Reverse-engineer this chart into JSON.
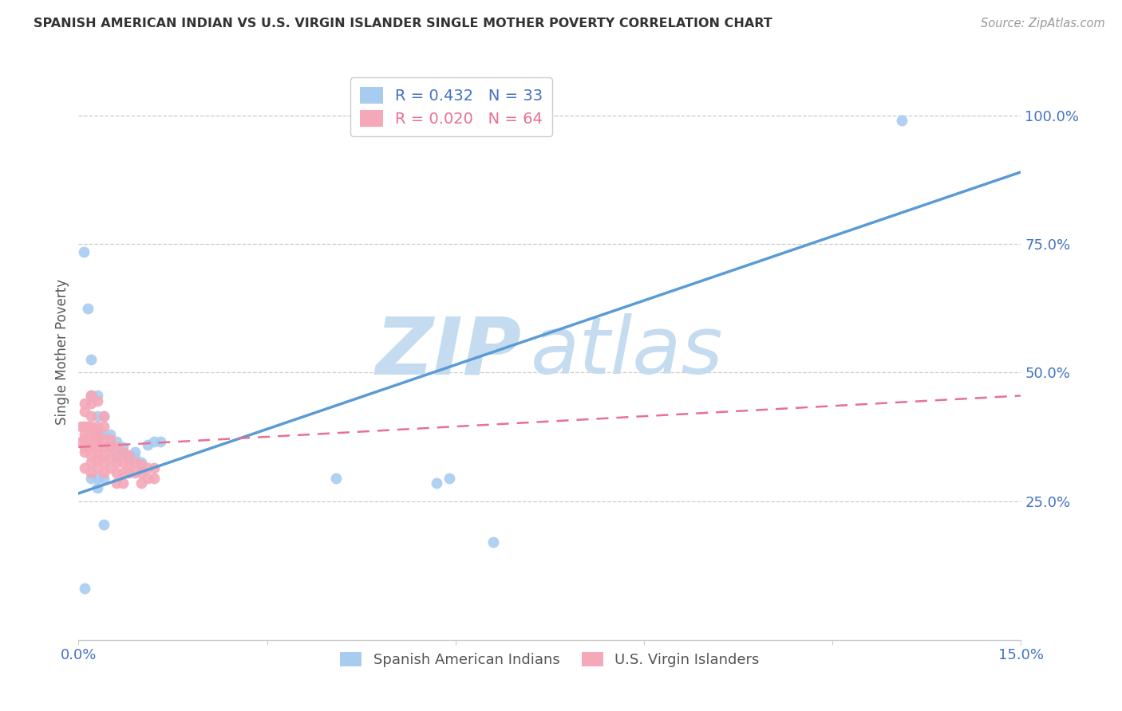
{
  "title": "SPANISH AMERICAN INDIAN VS U.S. VIRGIN ISLANDER SINGLE MOTHER POVERTY CORRELATION CHART",
  "source": "Source: ZipAtlas.com",
  "xlabel": "",
  "ylabel": "Single Mother Poverty",
  "xlim": [
    0.0,
    0.15
  ],
  "ylim": [
    -0.02,
    1.1
  ],
  "xticks": [
    0.0,
    0.03,
    0.06,
    0.09,
    0.12,
    0.15
  ],
  "xtick_labels": [
    "0.0%",
    "",
    "",
    "",
    "",
    "15.0%"
  ],
  "yticks_right": [
    0.25,
    0.5,
    0.75,
    1.0
  ],
  "ytick_right_labels": [
    "25.0%",
    "50.0%",
    "75.0%",
    "100.0%"
  ],
  "blue_color": "#A8CCF0",
  "pink_color": "#F4A8B8",
  "blue_line_color": "#5B9BD5",
  "pink_line_color": "#E87090",
  "watermark_zip": "ZIP",
  "watermark_atlas": "atlas",
  "legend_R_blue": "R = 0.432",
  "legend_N_blue": "N = 33",
  "legend_R_pink": "R = 0.020",
  "legend_N_pink": "N = 64",
  "blue_scatter_x": [
    0.0008,
    0.0015,
    0.002,
    0.002,
    0.003,
    0.003,
    0.003,
    0.004,
    0.004,
    0.005,
    0.005,
    0.006,
    0.006,
    0.007,
    0.007,
    0.008,
    0.009,
    0.009,
    0.01,
    0.011,
    0.012,
    0.013,
    0.002,
    0.003,
    0.004,
    0.059,
    0.057,
    0.003,
    0.041,
    0.004,
    0.066,
    0.131,
    0.001
  ],
  "blue_scatter_y": [
    0.735,
    0.625,
    0.525,
    0.455,
    0.455,
    0.415,
    0.38,
    0.415,
    0.38,
    0.38,
    0.355,
    0.365,
    0.335,
    0.355,
    0.345,
    0.335,
    0.345,
    0.335,
    0.325,
    0.36,
    0.365,
    0.365,
    0.295,
    0.295,
    0.295,
    0.295,
    0.285,
    0.275,
    0.295,
    0.205,
    0.17,
    0.99,
    0.08
  ],
  "pink_scatter_x": [
    0.0005,
    0.0005,
    0.001,
    0.001,
    0.001,
    0.001,
    0.001,
    0.001,
    0.001,
    0.001,
    0.0015,
    0.0015,
    0.002,
    0.002,
    0.002,
    0.002,
    0.002,
    0.002,
    0.002,
    0.002,
    0.002,
    0.002,
    0.0025,
    0.0025,
    0.003,
    0.003,
    0.003,
    0.003,
    0.003,
    0.003,
    0.003,
    0.003,
    0.004,
    0.004,
    0.004,
    0.004,
    0.004,
    0.004,
    0.004,
    0.005,
    0.005,
    0.005,
    0.005,
    0.006,
    0.006,
    0.006,
    0.006,
    0.006,
    0.007,
    0.007,
    0.007,
    0.007,
    0.008,
    0.008,
    0.008,
    0.009,
    0.009,
    0.01,
    0.01,
    0.01,
    0.011,
    0.011,
    0.012,
    0.012
  ],
  "pink_scatter_y": [
    0.395,
    0.365,
    0.44,
    0.425,
    0.395,
    0.38,
    0.37,
    0.355,
    0.345,
    0.315,
    0.395,
    0.355,
    0.455,
    0.44,
    0.415,
    0.395,
    0.38,
    0.37,
    0.355,
    0.34,
    0.325,
    0.305,
    0.39,
    0.365,
    0.445,
    0.395,
    0.38,
    0.37,
    0.355,
    0.34,
    0.33,
    0.315,
    0.415,
    0.395,
    0.37,
    0.355,
    0.34,
    0.325,
    0.305,
    0.37,
    0.355,
    0.335,
    0.315,
    0.355,
    0.34,
    0.325,
    0.305,
    0.285,
    0.345,
    0.325,
    0.305,
    0.285,
    0.34,
    0.32,
    0.305,
    0.325,
    0.305,
    0.32,
    0.305,
    0.285,
    0.315,
    0.295,
    0.315,
    0.295
  ],
  "blue_line_x": [
    0.0,
    0.15
  ],
  "blue_line_y": [
    0.265,
    0.89
  ],
  "pink_line_x": [
    0.0,
    0.15
  ],
  "pink_line_y": [
    0.355,
    0.455
  ],
  "grid_color": "#CCCCCC",
  "right_axis_color": "#4472C4",
  "background_color": "#FFFFFF"
}
